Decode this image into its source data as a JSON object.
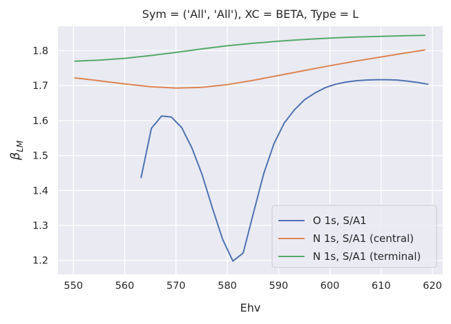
{
  "chart_data": {
    "type": "line",
    "title": "Sym = ('All', 'All'), XC = BETA, Type = L",
    "xlabel": "Ehv",
    "ylabel": "β",
    "ylabel_sub": "LM",
    "xlim": [
      547,
      622
    ],
    "ylim": [
      1.16,
      1.87
    ],
    "xticks": [
      550,
      560,
      570,
      580,
      590,
      600,
      610,
      620
    ],
    "yticks": [
      1.2,
      1.3,
      1.4,
      1.5,
      1.6,
      1.7,
      1.8
    ],
    "ytick_labels": [
      "1.2",
      "1.3",
      "1.4",
      "1.5",
      "1.6",
      "1.7",
      "1.8"
    ],
    "grid": true,
    "legend_position": "lower-right",
    "series": [
      {
        "name": "O 1s, S/A1",
        "color": "#4c72b0",
        "x": [
          563.2,
          565.2,
          567.2,
          569.1,
          571.1,
          573.1,
          575.1,
          577.1,
          579.1,
          581.1,
          583.1,
          585.1,
          587.1,
          589.1,
          591.1,
          593.1,
          595.1,
          597.1,
          599.1,
          601.1,
          603.1,
          605.1,
          607.1,
          609.1,
          611.1,
          613.1,
          615.1,
          617.1,
          619.1
        ],
        "y": [
          1.437,
          1.578,
          1.613,
          1.61,
          1.58,
          1.522,
          1.445,
          1.35,
          1.26,
          1.198,
          1.221,
          1.336,
          1.448,
          1.534,
          1.593,
          1.631,
          1.66,
          1.679,
          1.694,
          1.704,
          1.71,
          1.714,
          1.716,
          1.717,
          1.717,
          1.716,
          1.713,
          1.709,
          1.704
        ]
      },
      {
        "name": "N 1s, S/A1 (central)",
        "color": "#dd8452",
        "x": [
          550.3,
          555,
          560,
          565,
          570,
          575,
          580,
          585,
          590,
          595,
          600,
          605,
          610,
          615,
          618.5
        ],
        "y": [
          1.722,
          1.714,
          1.705,
          1.697,
          1.693,
          1.695,
          1.703,
          1.715,
          1.729,
          1.743,
          1.757,
          1.77,
          1.782,
          1.794,
          1.802
        ]
      },
      {
        "name": "N 1s, S/A1 (terminal)",
        "color": "#55a868",
        "x": [
          550.3,
          555,
          560,
          565,
          570,
          575,
          580,
          585,
          590,
          595,
          600,
          605,
          610,
          615,
          618.5
        ],
        "y": [
          1.77,
          1.773,
          1.778,
          1.786,
          1.795,
          1.805,
          1.814,
          1.821,
          1.827,
          1.832,
          1.836,
          1.839,
          1.841,
          1.843,
          1.844
        ]
      }
    ]
  }
}
